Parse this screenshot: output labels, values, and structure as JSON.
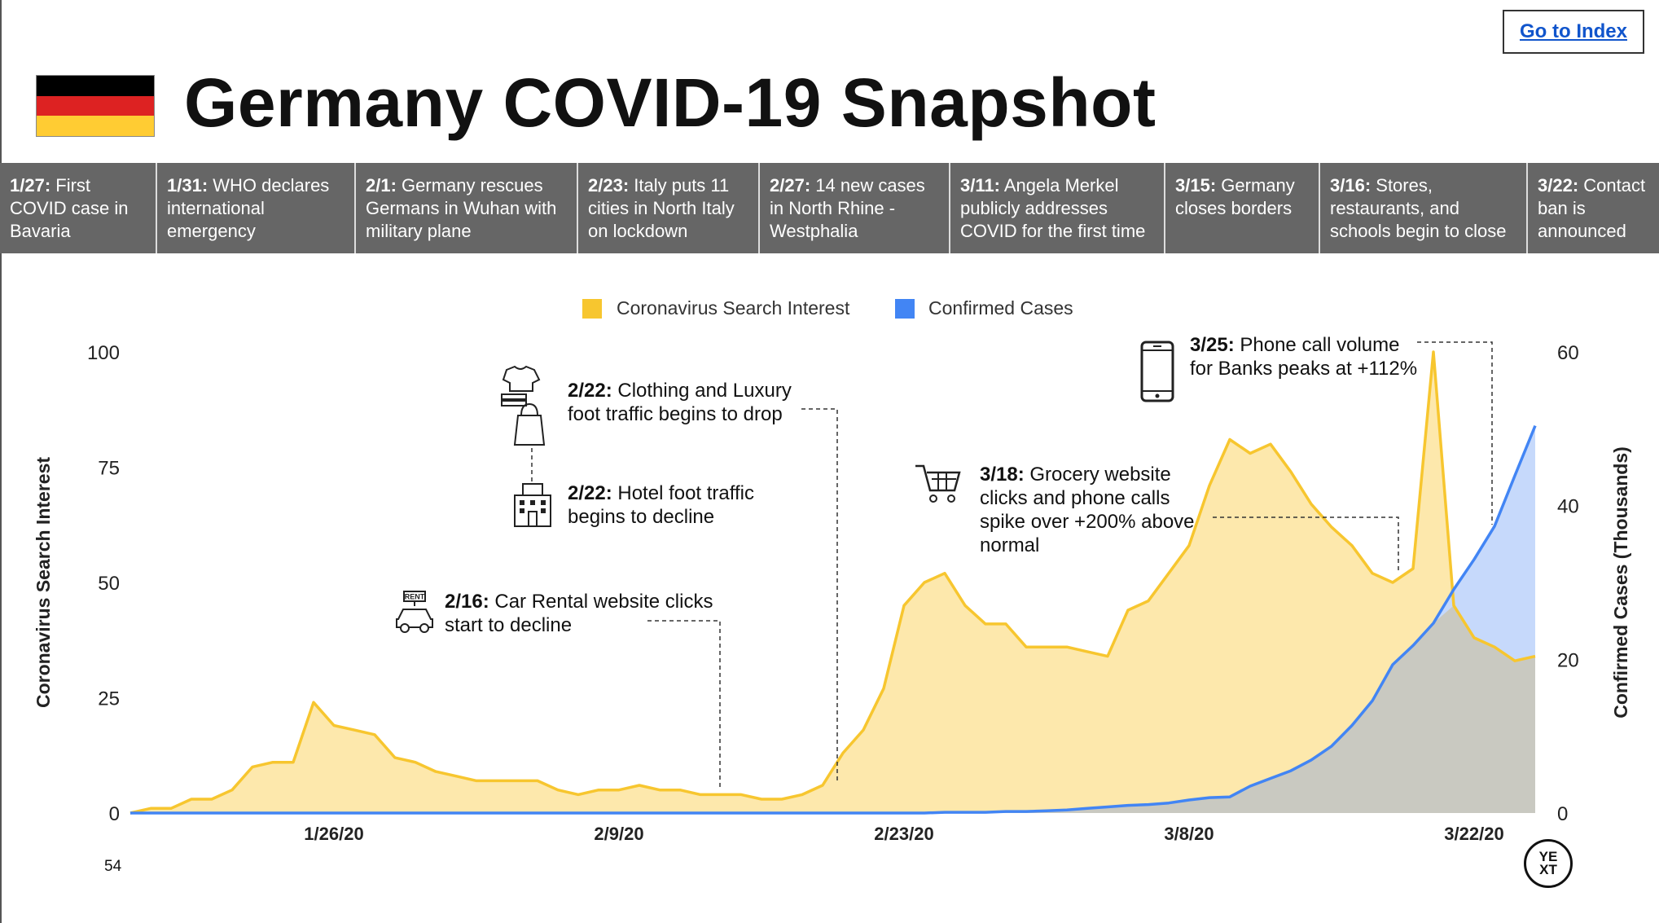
{
  "header": {
    "title": "Germany COVID-19 Snapshot",
    "index_link": "Go to Index",
    "flag_colors": [
      "#000000",
      "#dd2222",
      "#ffcc33"
    ]
  },
  "timeline": [
    {
      "date": "1/27:",
      "text": " First COVID case in Bavaria"
    },
    {
      "date": "1/31:",
      "text": " WHO declares international emergency"
    },
    {
      "date": "2/1:",
      "text": " Germany rescues Germans in Wuhan with military plane"
    },
    {
      "date": "2/23:",
      "text": " Italy puts 11 cities in North Italy on lockdown"
    },
    {
      "date": "2/27:",
      "text": " 14 new cases in North Rhine - Westphalia"
    },
    {
      "date": "3/11:",
      "text": " Angela Merkel publicly addresses COVID for the first time"
    },
    {
      "date": "3/15:",
      "text": " Germany closes borders"
    },
    {
      "date": "3/16:",
      "text": " Stores, restaurants, and schools begin to close"
    },
    {
      "date": "3/22:",
      "text": " Contact ban is announced"
    }
  ],
  "annotations": [
    {
      "date": "2/16:",
      "text": " Car Rental website clicks start to decline",
      "icon": "car-rental-icon"
    },
    {
      "date": "2/22:",
      "text": " Clothing and Luxury foot traffic begins to drop",
      "icon": "clothing-bag-icon"
    },
    {
      "date": "2/22:",
      "text": " Hotel foot traffic begins to decline",
      "icon": "hotel-icon"
    },
    {
      "date": "3/18:",
      "text": " Grocery website clicks and phone calls spike over +200% above normal",
      "icon": "shopping-cart-icon"
    },
    {
      "date": "3/25:",
      "text": " Phone call volume for Banks peaks at +112%",
      "icon": "phone-icon"
    }
  ],
  "footer": {
    "page_number": "54",
    "logo_top": "YE",
    "logo_bottom": "XT"
  },
  "chart_data": {
    "type": "area",
    "legend_position": "top-center",
    "x_start": "2020-01-16",
    "xticks": [
      {
        "label": "1/26/20",
        "day": 10
      },
      {
        "label": "2/9/20",
        "day": 24
      },
      {
        "label": "2/23/20",
        "day": 38
      },
      {
        "label": "3/8/20",
        "day": 52
      },
      {
        "label": "3/22/20",
        "day": 66
      }
    ],
    "ylabel": "Coronavirus Search Interest",
    "y2label": "Confirmed Cases (Thousands)",
    "ylim": [
      0,
      100
    ],
    "y2lim": [
      0,
      60
    ],
    "yticks": [
      "0",
      "25",
      "50",
      "75",
      "100"
    ],
    "y2ticks": [
      "0",
      "20",
      "40",
      "60"
    ],
    "colors": {
      "search": "#f7c62f",
      "search_fill": "#fde8ac",
      "cases": "#4285f4",
      "cases_fill": "#c6d9fb",
      "overlap_fill": "#c9c9c1"
    },
    "series": [
      {
        "name": "Coronavirus Search Interest",
        "axis": "left",
        "values": [
          0,
          1,
          1,
          3,
          3,
          5,
          10,
          11,
          11,
          24,
          19,
          18,
          17,
          12,
          11,
          9,
          8,
          7,
          7,
          7,
          7,
          5,
          4,
          5,
          5,
          6,
          5,
          5,
          4,
          4,
          4,
          3,
          3,
          4,
          6,
          13,
          18,
          27,
          45,
          50,
          52,
          45,
          41,
          41,
          36,
          36,
          36,
          35,
          34,
          44,
          46,
          52,
          58,
          71,
          81,
          78,
          80,
          74,
          67,
          62,
          58,
          52,
          50,
          53,
          100,
          45,
          38,
          36,
          33,
          34
        ]
      },
      {
        "name": "Confirmed Cases",
        "axis": "right",
        "values": [
          0,
          0,
          0,
          0,
          0,
          0,
          0,
          0,
          0,
          0,
          0,
          0,
          0,
          0,
          0,
          0,
          0,
          0,
          0,
          0,
          0,
          0,
          0,
          0,
          0,
          0,
          0,
          0,
          0,
          0,
          0,
          0,
          0,
          0,
          0,
          0,
          0,
          0,
          0,
          0,
          0.1,
          0.1,
          0.1,
          0.2,
          0.2,
          0.3,
          0.4,
          0.6,
          0.8,
          1.0,
          1.1,
          1.3,
          1.7,
          2.0,
          2.1,
          3.5,
          4.5,
          5.5,
          6.9,
          8.7,
          11.4,
          14.6,
          19.3,
          21.8,
          24.7,
          29.1,
          33.0,
          37.3,
          43.9,
          50.4
        ]
      }
    ]
  }
}
